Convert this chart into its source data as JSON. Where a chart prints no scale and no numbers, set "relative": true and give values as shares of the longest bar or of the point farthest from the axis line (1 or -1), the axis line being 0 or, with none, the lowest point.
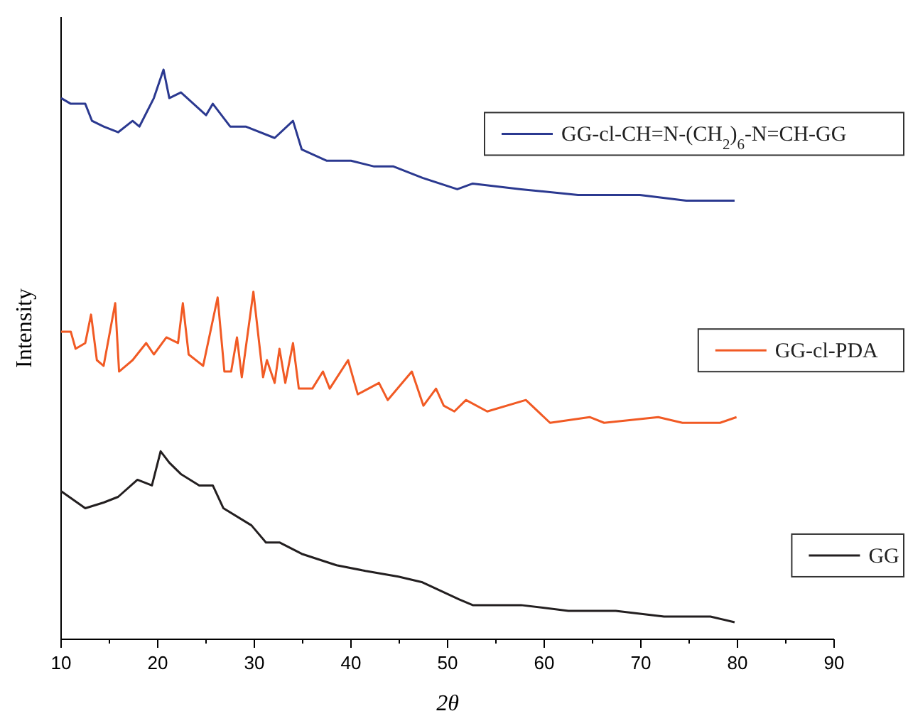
{
  "chart_data": {
    "type": "line",
    "relative": true,
    "xlabel": "2θ",
    "ylabel": "Intensity",
    "xlim": [
      10,
      90
    ],
    "xticks": [
      10,
      20,
      30,
      40,
      50,
      60,
      70,
      80,
      90
    ],
    "legend": "right",
    "marker": "none",
    "line_style": "solid",
    "grid": false,
    "series": [
      {
        "name": "GG-cl-CH=N-(CH$_{2}$)$_{6}$-N=CH-GG",
        "color": "#2b3990",
        "x": [
          10,
          11,
          12.5,
          13.2,
          14.4,
          15.9,
          17.4,
          18.1,
          19.6,
          20.6,
          21.2,
          22.4,
          25,
          25.7,
          27.5,
          29.1,
          32.1,
          34,
          34.9,
          37.5,
          40,
          42.4,
          44.4,
          47.4,
          51,
          52.6,
          57.6,
          63.5,
          69.9,
          74.7,
          79.7
        ],
        "values": [
          0.95,
          0.94,
          0.94,
          0.91,
          0.9,
          0.89,
          0.91,
          0.9,
          0.95,
          1,
          0.95,
          0.96,
          0.92,
          0.94,
          0.9,
          0.9,
          0.88,
          0.91,
          0.86,
          0.84,
          0.84,
          0.83,
          0.83,
          0.81,
          0.79,
          0.8,
          0.79,
          0.78,
          0.78,
          0.77,
          0.77
        ]
      },
      {
        "name": "GG-cl-PDA",
        "color": "#f15a24",
        "x": [
          10,
          11,
          11.5,
          12.5,
          13.1,
          13.7,
          14.4,
          15.6,
          16,
          17.4,
          18.8,
          19.6,
          20.9,
          22.1,
          22.6,
          23.2,
          24.7,
          26.2,
          26.9,
          27.6,
          28.2,
          28.7,
          29.9,
          30.9,
          31.3,
          32.1,
          32.6,
          33.2,
          34,
          34.6,
          36,
          37.1,
          37.8,
          39.7,
          40.7,
          42.9,
          43.8,
          46.3,
          47.5,
          48.8,
          49.6,
          50.7,
          51.9,
          54.1,
          58.1,
          60.6,
          64.7,
          66.2,
          71.8,
          74.3,
          76.8,
          78.2,
          79.9
        ],
        "values": [
          0.54,
          0.54,
          0.51,
          0.52,
          0.57,
          0.49,
          0.48,
          0.59,
          0.47,
          0.49,
          0.52,
          0.5,
          0.53,
          0.52,
          0.59,
          0.5,
          0.48,
          0.6,
          0.47,
          0.47,
          0.53,
          0.46,
          0.61,
          0.46,
          0.49,
          0.45,
          0.51,
          0.45,
          0.52,
          0.44,
          0.44,
          0.47,
          0.44,
          0.49,
          0.43,
          0.45,
          0.42,
          0.47,
          0.41,
          0.44,
          0.41,
          0.4,
          0.42,
          0.4,
          0.42,
          0.38,
          0.39,
          0.38,
          0.39,
          0.38,
          0.38,
          0.38,
          0.39
        ]
      },
      {
        "name": "GG",
        "color": "#231f20",
        "x": [
          10,
          12.5,
          14.4,
          15.9,
          17.9,
          19.4,
          20.3,
          21.2,
          22.4,
          24.3,
          25.7,
          26.8,
          29.7,
          31.2,
          32.6,
          34.9,
          38.5,
          41.5,
          44.9,
          47.4,
          51.2,
          52.6,
          57.6,
          62.5,
          67.4,
          72.4,
          77.2,
          79.7
        ],
        "values": [
          0.26,
          0.23,
          0.24,
          0.25,
          0.28,
          0.27,
          0.33,
          0.31,
          0.29,
          0.27,
          0.27,
          0.23,
          0.2,
          0.17,
          0.17,
          0.15,
          0.13,
          0.12,
          0.11,
          0.1,
          0.07,
          0.06,
          0.06,
          0.05,
          0.05,
          0.04,
          0.04,
          0.03
        ]
      }
    ]
  }
}
